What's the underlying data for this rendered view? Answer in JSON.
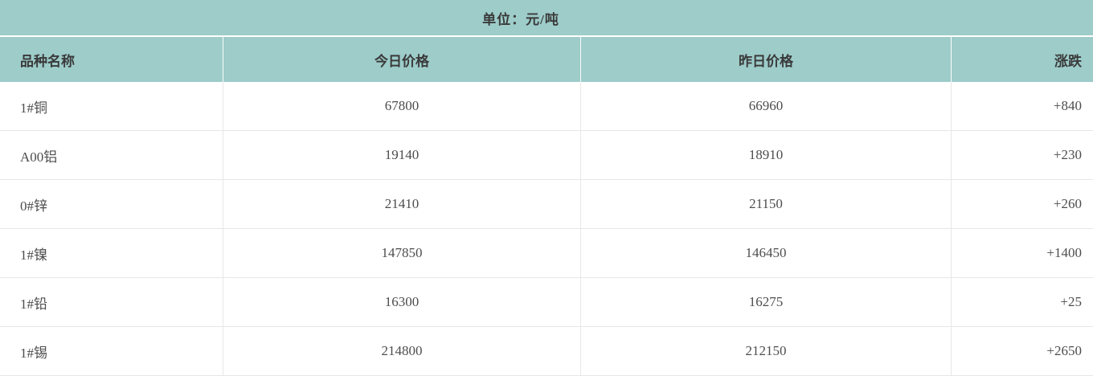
{
  "header": {
    "unit_label": "单位：元/吨"
  },
  "colors": {
    "accent_teal": "#9dccc9",
    "separator_white": "#ffffff",
    "row_border_gray": "#e7e7e7",
    "header_text": "#3a3a3a",
    "body_text": "#4d4d4d"
  },
  "chart_data": {
    "type": "table",
    "title": "单位：元/吨",
    "columns": [
      "品种名称",
      "今日价格",
      "昨日价格",
      "涨跌"
    ],
    "rows": [
      [
        "1#铜",
        67800,
        66960,
        "+840"
      ],
      [
        "A00铝",
        19140,
        18910,
        "+230"
      ],
      [
        "0#锌",
        21410,
        21150,
        "+260"
      ],
      [
        "1#镍",
        147850,
        146450,
        "+1400"
      ],
      [
        "1#铅",
        16300,
        16275,
        "+25"
      ],
      [
        "1#锡",
        214800,
        212150,
        "+2650"
      ]
    ]
  }
}
